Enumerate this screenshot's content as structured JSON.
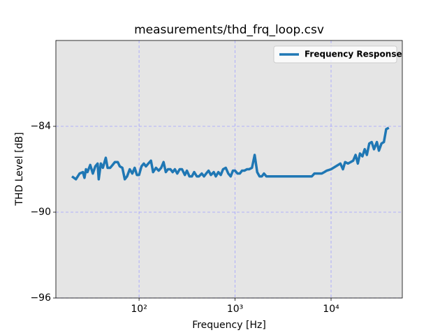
{
  "chart_data": {
    "type": "line",
    "title": "measurements/thd_frq_loop.csv",
    "xlabel": "Frequency [Hz]",
    "ylabel": "THD Level [dB]",
    "xscale": "log",
    "xlim": [
      13.6,
      55200
    ],
    "ylim": [
      -96,
      -78
    ],
    "xticks": [
      {
        "value": 100,
        "label": "10²"
      },
      {
        "value": 1000,
        "label": "10³"
      },
      {
        "value": 10000,
        "label": "10⁴"
      }
    ],
    "yticks": [
      {
        "value": -96,
        "label": "−96"
      },
      {
        "value": -90,
        "label": "−90"
      },
      {
        "value": -84,
        "label": "−84"
      }
    ],
    "grid": true,
    "legend": "upper right",
    "x": [
      20,
      22,
      24,
      26,
      27,
      28,
      29,
      31,
      33,
      35,
      37,
      38,
      40,
      42,
      45,
      47,
      50,
      53,
      56,
      60,
      63,
      67,
      71,
      75,
      80,
      85,
      90,
      95,
      100,
      106,
      112,
      118,
      125,
      133,
      140,
      150,
      160,
      170,
      180,
      190,
      200,
      212,
      224,
      236,
      250,
      265,
      280,
      300,
      315,
      335,
      355,
      375,
      400,
      420,
      450,
      475,
      500,
      530,
      560,
      600,
      630,
      670,
      710,
      750,
      800,
      850,
      900,
      950,
      1000,
      1060,
      1120,
      1180,
      1250,
      1330,
      1400,
      1500,
      1600,
      1700,
      1800,
      1900,
      2000,
      2120,
      3000,
      4000,
      5000,
      6300,
      6700,
      8000,
      8500,
      9000,
      10000,
      11200,
      12500,
      13300,
      14000,
      15000,
      16000,
      17000,
      18000,
      19000,
      20000,
      21200,
      22400,
      23600,
      25000,
      26500,
      28000,
      30000,
      31500,
      33500,
      35500,
      37500,
      40000
    ],
    "series": [
      {
        "name": "Frequency Response",
        "color": "#1f77b4",
        "values": [
          -87.5,
          -87.7,
          -87.3,
          -87.2,
          -87.6,
          -87.0,
          -87.2,
          -86.7,
          -87.3,
          -86.8,
          -86.6,
          -87.7,
          -86.6,
          -86.9,
          -86.2,
          -86.9,
          -86.9,
          -86.7,
          -86.5,
          -86.5,
          -86.8,
          -86.9,
          -87.7,
          -87.5,
          -87.0,
          -87.3,
          -86.9,
          -87.4,
          -87.4,
          -86.8,
          -86.6,
          -86.8,
          -86.6,
          -86.4,
          -87.2,
          -86.9,
          -87.1,
          -86.9,
          -86.5,
          -87.2,
          -87.0,
          -87.0,
          -87.2,
          -87.0,
          -87.3,
          -87.0,
          -87.0,
          -87.4,
          -87.1,
          -87.5,
          -87.5,
          -87.2,
          -87.5,
          -87.5,
          -87.3,
          -87.5,
          -87.3,
          -87.1,
          -87.4,
          -87.2,
          -87.5,
          -87.2,
          -87.4,
          -87.0,
          -86.9,
          -87.3,
          -87.5,
          -87.1,
          -87.1,
          -87.3,
          -87.3,
          -87.1,
          -87.1,
          -87.0,
          -87.0,
          -86.9,
          -86.0,
          -87.2,
          -87.5,
          -87.5,
          -87.3,
          -87.5,
          -87.5,
          -87.5,
          -87.5,
          -87.5,
          -87.3,
          -87.3,
          -87.2,
          -87.1,
          -87.0,
          -86.8,
          -86.6,
          -87.0,
          -86.5,
          -86.6,
          -86.5,
          -86.4,
          -86.0,
          -86.6,
          -85.9,
          -86.1,
          -85.6,
          -86.0,
          -85.2,
          -85.1,
          -85.6,
          -85.1,
          -85.7,
          -85.2,
          -85.1,
          -84.2,
          -84.1
        ]
      }
    ]
  }
}
